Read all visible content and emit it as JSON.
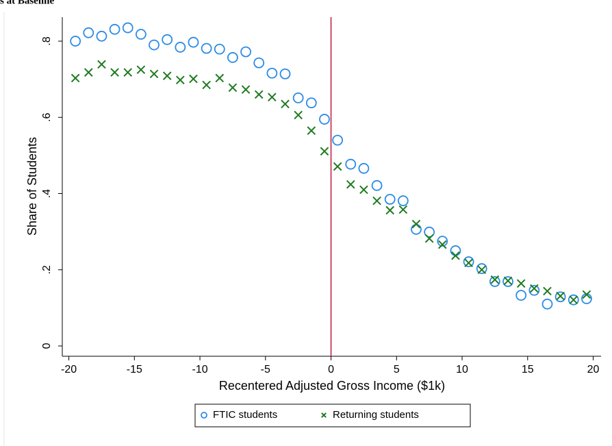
{
  "chart_data": {
    "type": "scatter",
    "title": "s at Baseline",
    "x_label": "Recentered Adjusted Gross Income ($1k)",
    "y_label": "Share of Students",
    "x": [
      -19.5,
      -18.5,
      -17.5,
      -16.5,
      -15.5,
      -14.5,
      -13.5,
      -12.5,
      -11.5,
      -10.5,
      -9.5,
      -8.5,
      -7.5,
      -6.5,
      -5.5,
      -4.5,
      -3.5,
      -2.5,
      -1.5,
      -0.5,
      0.5,
      1.5,
      2.5,
      3.5,
      4.5,
      5.5,
      6.5,
      7.5,
      8.5,
      9.5,
      10.5,
      11.5,
      12.5,
      13.5,
      14.5,
      15.5,
      16.5,
      17.5,
      18.5,
      19.5
    ],
    "series": [
      {
        "name": "FTIC students",
        "color": "#2b8be6",
        "marker": "circle",
        "values": [
          0.8,
          0.822,
          0.813,
          0.831,
          0.835,
          0.818,
          0.79,
          0.804,
          0.784,
          0.797,
          0.781,
          0.779,
          0.757,
          0.772,
          0.743,
          0.716,
          0.714,
          0.651,
          0.638,
          0.595,
          0.54,
          0.477,
          0.466,
          0.421,
          0.385,
          0.381,
          0.306,
          0.299,
          0.275,
          0.25,
          0.221,
          0.203,
          0.169,
          0.169,
          0.133,
          0.146,
          0.11,
          0.129,
          0.121,
          0.124
        ]
      },
      {
        "name": "Returning students",
        "color": "#1f7a1f",
        "marker": "x",
        "values": [
          0.703,
          0.718,
          0.739,
          0.718,
          0.718,
          0.725,
          0.714,
          0.709,
          0.698,
          0.701,
          0.685,
          0.703,
          0.678,
          0.673,
          0.66,
          0.653,
          0.635,
          0.606,
          0.565,
          0.511,
          0.471,
          0.424,
          0.41,
          0.381,
          0.356,
          0.358,
          0.32,
          0.282,
          0.266,
          0.237,
          0.218,
          0.2,
          0.174,
          0.171,
          0.164,
          0.151,
          0.144,
          0.131,
          0.121,
          0.135
        ]
      }
    ],
    "xlim": [
      -20.5,
      20.6
    ],
    "ylim": [
      -0.027,
      0.863
    ],
    "xticks": [
      -20,
      -15,
      -10,
      -5,
      0,
      5,
      10,
      15,
      20
    ],
    "yticks": [
      0,
      {
        "value": 0.2,
        "label": ".2"
      },
      {
        "value": 0.4,
        "label": ".4"
      },
      {
        "value": 0.6,
        "label": ".6"
      },
      {
        "value": 0.8,
        "label": ".8"
      }
    ],
    "vline": 0,
    "vline_color": "#c0163a",
    "legend": "bottom"
  }
}
